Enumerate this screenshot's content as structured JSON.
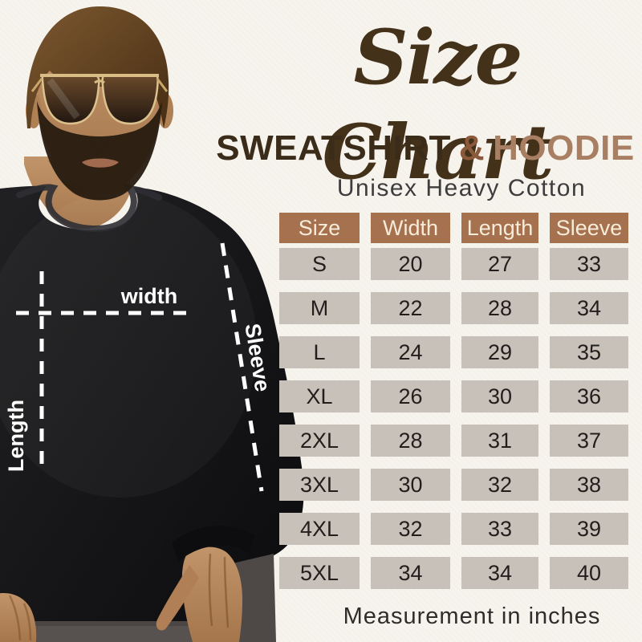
{
  "colors": {
    "background": "#f7f4ee",
    "title_brown": "#44311a",
    "sweatshirt_text": "#3a2c19",
    "amp_brown": "#8a5a3a",
    "hoodie_brown": "#a87f62",
    "tagline_gray": "#3d3d3d",
    "table_header_bg": "#a6714e",
    "table_header_text": "#f7ecd9",
    "table_cell_bg": "#c8c1ba",
    "table_cell_text": "#211e1c",
    "note_gray": "#2f2d2b",
    "measure_line_white": "#ffffff"
  },
  "title": {
    "text": "Size Chart"
  },
  "subtitle": {
    "part1": "SWEATSHIRT",
    "amp": "&",
    "part2": "HOODIE"
  },
  "tagline": {
    "text": "Unisex Heavy Cotton"
  },
  "photo": {
    "labels": {
      "width": "width",
      "length": "Length",
      "sleeve": "Sleeve"
    }
  },
  "footer": {
    "note": "Measurement in inches"
  },
  "chart_data": {
    "type": "table",
    "title": "Size Chart",
    "subtitle": "SWEATSHIRT & HOODIE",
    "material": "Unisex Heavy Cotton",
    "unit": "inches",
    "note": "Measurement in inches",
    "columns": [
      "Size",
      "Width",
      "Length",
      "Sleeve"
    ],
    "rows": [
      [
        "S",
        20,
        27,
        33
      ],
      [
        "M",
        22,
        28,
        34
      ],
      [
        "L",
        24,
        29,
        35
      ],
      [
        "XL",
        26,
        30,
        36
      ],
      [
        "2XL",
        28,
        31,
        37
      ],
      [
        "3XL",
        30,
        32,
        38
      ],
      [
        "4XL",
        32,
        33,
        39
      ],
      [
        "5XL",
        34,
        34,
        40
      ]
    ]
  }
}
